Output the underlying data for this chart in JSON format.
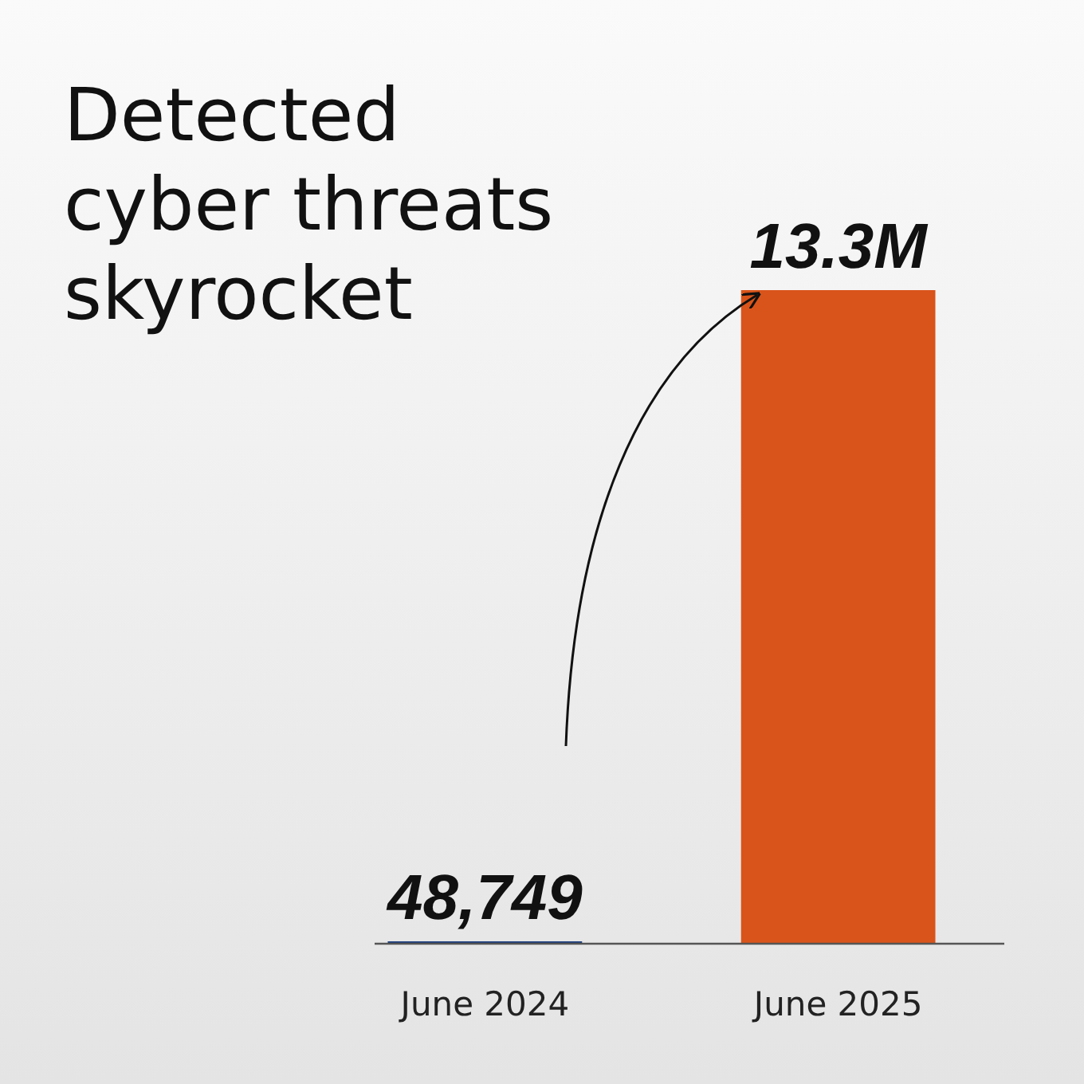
{
  "chart_data": {
    "type": "bar",
    "title": "Detected\ncyber threats\nskyrocket",
    "categories": [
      "June 2024",
      "June 2025"
    ],
    "values": [
      48749,
      13300000
    ],
    "colors": [
      "#1f3f7e",
      "#d9541a"
    ],
    "value_labels": [
      "48,749",
      "13.3M"
    ]
  }
}
